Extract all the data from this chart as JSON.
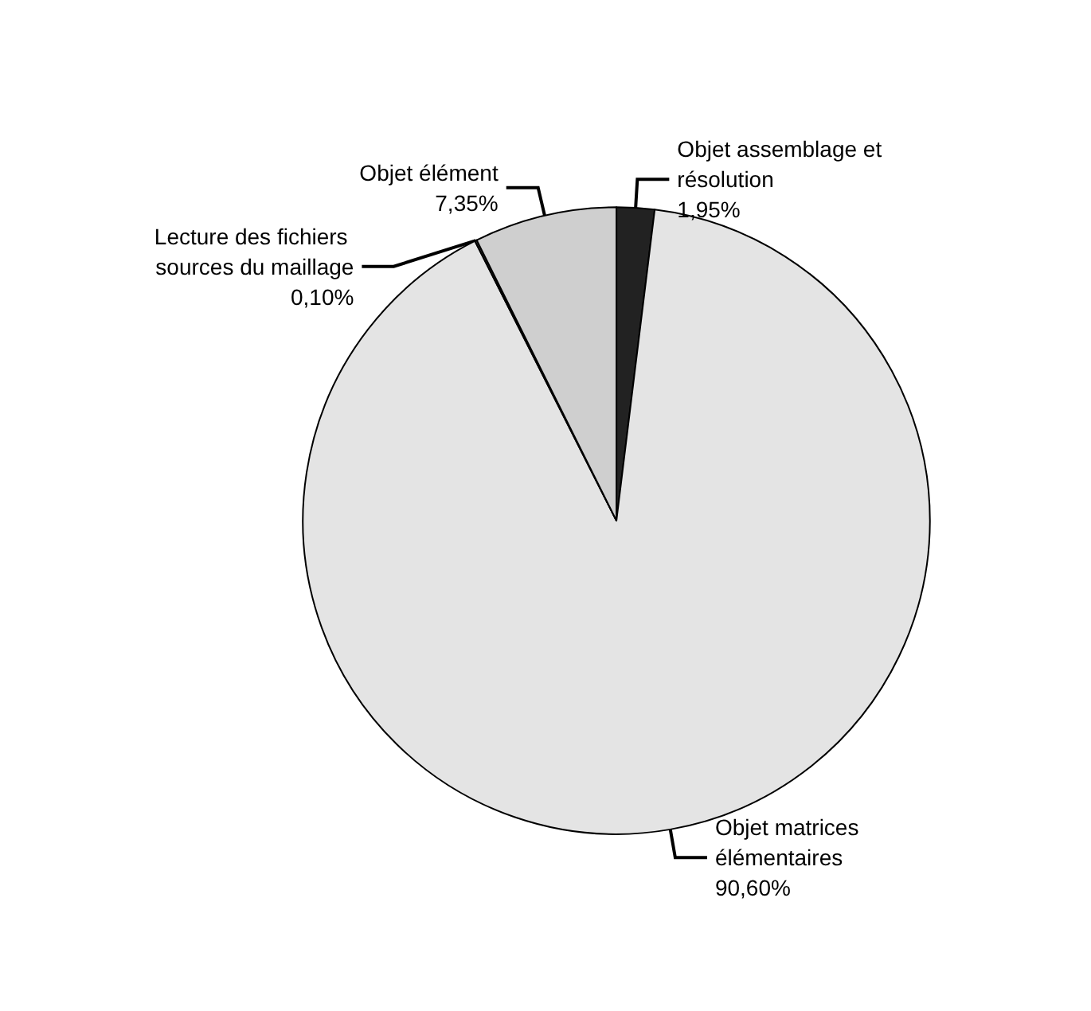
{
  "chart_data": {
    "type": "pie",
    "categories": [
      "Objet assemblage et résolution",
      "Objet matrices élémentaires",
      "Lecture des fichiers sources du maillage",
      "Objet élément"
    ],
    "values": [
      1.95,
      90.6,
      0.1,
      7.35
    ],
    "value_labels": [
      "1,95%",
      "90,60%",
      "0,10%",
      "7,35%"
    ],
    "colors": [
      "#222222",
      "#e4e4e4",
      "#555555",
      "#cfcfcf"
    ],
    "legend": false
  }
}
